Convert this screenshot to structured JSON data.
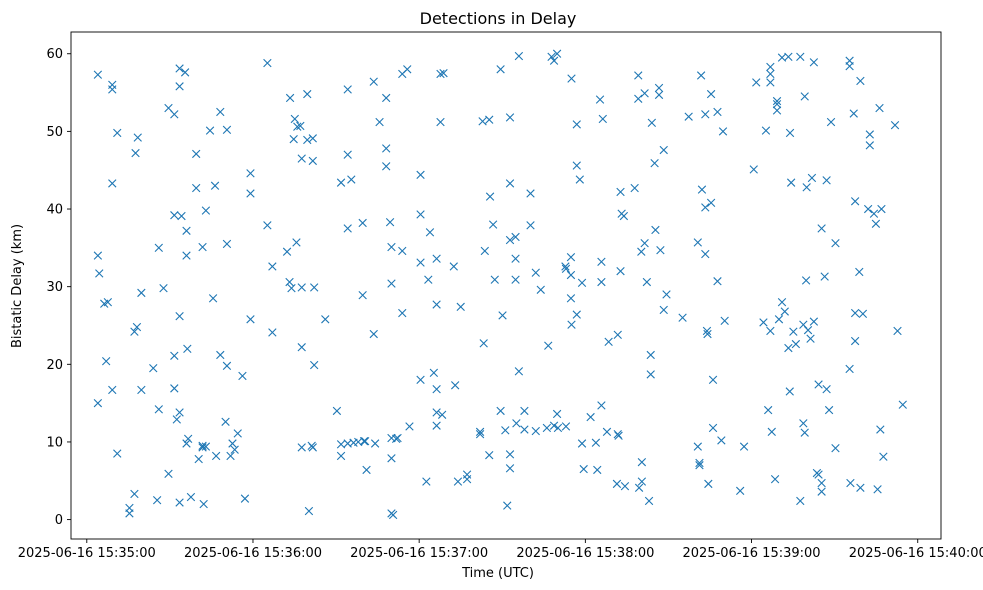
{
  "chart_data": {
    "type": "scatter",
    "title": "Detections in Delay",
    "xlabel": "Time (UTC)",
    "ylabel": "Bistatic Delay (km)",
    "marker": "x",
    "color": "#1f77b4",
    "grid": false,
    "x_unit": "seconds after 2025-06-16 15:35:00",
    "xlim": [
      -5.7,
      308.4
    ],
    "ylim": [
      -2.5,
      62.8
    ],
    "x_ticks": [
      0,
      60,
      120,
      180,
      240,
      300
    ],
    "x_tick_labels": [
      "2025-06-16 15:35:00",
      "2025-06-16 15:36:00",
      "2025-06-16 15:37:00",
      "2025-06-16 15:38:00",
      "2025-06-16 15:39:00",
      "2025-06-16 15:40:00"
    ],
    "y_ticks": [
      0,
      10,
      20,
      30,
      40,
      50,
      60
    ],
    "y_tick_labels": [
      "0",
      "10",
      "20",
      "30",
      "40",
      "50",
      "60"
    ],
    "points": [
      [
        4,
        57.3
      ],
      [
        4,
        34
      ],
      [
        4,
        15
      ],
      [
        4.5,
        31.7
      ],
      [
        6.3,
        27.8
      ],
      [
        7,
        20.4
      ],
      [
        7.6,
        28
      ],
      [
        9.2,
        55.4
      ],
      [
        9.2,
        56
      ],
      [
        9.2,
        43.3
      ],
      [
        9.2,
        16.7
      ],
      [
        11,
        49.8
      ],
      [
        11,
        8.5
      ],
      [
        15.4,
        0.8
      ],
      [
        15.4,
        1.5
      ],
      [
        17.2,
        24.2
      ],
      [
        17.2,
        3.3
      ],
      [
        17.6,
        47.2
      ],
      [
        18.1,
        24.8
      ],
      [
        18.4,
        49.2
      ],
      [
        19.7,
        16.7
      ],
      [
        19.7,
        29.2
      ],
      [
        24,
        19.5
      ],
      [
        25.4,
        2.5
      ],
      [
        26,
        35
      ],
      [
        26,
        14.2
      ],
      [
        27.7,
        29.8
      ],
      [
        29.5,
        5.9
      ],
      [
        29.5,
        53
      ],
      [
        31.6,
        52.2
      ],
      [
        31.6,
        39.2
      ],
      [
        31.6,
        21.1
      ],
      [
        31.6,
        16.9
      ],
      [
        32.5,
        12.9
      ],
      [
        33.5,
        58.1
      ],
      [
        33.5,
        55.8
      ],
      [
        33.5,
        26.2
      ],
      [
        33.5,
        13.8
      ],
      [
        33.5,
        2.2
      ],
      [
        34.2,
        39.1
      ],
      [
        35.5,
        57.6
      ],
      [
        36,
        37.2
      ],
      [
        36,
        34
      ],
      [
        36,
        9.8
      ],
      [
        36.3,
        22
      ],
      [
        36.6,
        10.4
      ],
      [
        37.6,
        2.9
      ],
      [
        39.5,
        47.1
      ],
      [
        39.5,
        42.7
      ],
      [
        40.4,
        7.8
      ],
      [
        41.8,
        35.1
      ],
      [
        41.8,
        9.5
      ],
      [
        41.8,
        9.3
      ],
      [
        42.2,
        2
      ],
      [
        43,
        9.4
      ],
      [
        43,
        39.8
      ],
      [
        44.5,
        50.1
      ],
      [
        45.6,
        28.5
      ],
      [
        46.3,
        43
      ],
      [
        46.7,
        8.2
      ],
      [
        48.2,
        52.5
      ],
      [
        48.2,
        21.2
      ],
      [
        50.1,
        12.6
      ],
      [
        50.6,
        50.2
      ],
      [
        50.6,
        35.5
      ],
      [
        50.6,
        19.8
      ],
      [
        51.9,
        8.2
      ],
      [
        52.6,
        9.8
      ],
      [
        53.4,
        9
      ],
      [
        54.5,
        11.1
      ],
      [
        56.2,
        18.5
      ],
      [
        57.1,
        2.7
      ],
      [
        59.1,
        44.6
      ],
      [
        59.1,
        42
      ],
      [
        59.1,
        25.8
      ],
      [
        65.2,
        58.8
      ],
      [
        65.2,
        37.9
      ],
      [
        67,
        32.6
      ],
      [
        67,
        24.1
      ],
      [
        72.3,
        34.5
      ],
      [
        73.2,
        30.6
      ],
      [
        73.4,
        54.3
      ],
      [
        73.9,
        29.8
      ],
      [
        74.7,
        49
      ],
      [
        75.1,
        51.6
      ],
      [
        75.7,
        35.7
      ],
      [
        76,
        50.6
      ],
      [
        77.1,
        50.7
      ],
      [
        77.6,
        46.5
      ],
      [
        77.6,
        22.2
      ],
      [
        77.6,
        29.9
      ],
      [
        77.6,
        9.3
      ],
      [
        79.6,
        54.8
      ],
      [
        79.6,
        48.9
      ],
      [
        80.2,
        1.1
      ],
      [
        81.2,
        9.5
      ],
      [
        81.6,
        9.3
      ],
      [
        81.6,
        46.2
      ],
      [
        81.6,
        49.1
      ],
      [
        82.1,
        29.9
      ],
      [
        82.1,
        19.9
      ],
      [
        86.1,
        25.8
      ],
      [
        90.3,
        14
      ],
      [
        91.8,
        43.4
      ],
      [
        91.8,
        9.7
      ],
      [
        91.8,
        8.2
      ],
      [
        94.2,
        55.4
      ],
      [
        94.2,
        47
      ],
      [
        94.2,
        37.5
      ],
      [
        94.2,
        9.8
      ],
      [
        95.5,
        43.8
      ],
      [
        96.3,
        9.9
      ],
      [
        98,
        10
      ],
      [
        99.6,
        38.2
      ],
      [
        99.6,
        28.9
      ],
      [
        100.1,
        10.1
      ],
      [
        100.5,
        10.1
      ],
      [
        101,
        6.4
      ],
      [
        103.6,
        56.4
      ],
      [
        103.6,
        23.9
      ],
      [
        104.1,
        9.8
      ],
      [
        105.7,
        51.2
      ],
      [
        108.1,
        54.3
      ],
      [
        108.1,
        47.8
      ],
      [
        108.1,
        45.5
      ],
      [
        109.5,
        38.3
      ],
      [
        110,
        10.5
      ],
      [
        110,
        7.9
      ],
      [
        110,
        35.1
      ],
      [
        110,
        30.4
      ],
      [
        110,
        0.8
      ],
      [
        110.6,
        0.6
      ],
      [
        111.7,
        10.4
      ],
      [
        112.2,
        10.5
      ],
      [
        113.9,
        57.4
      ],
      [
        113.9,
        34.6
      ],
      [
        113.9,
        26.6
      ],
      [
        115.7,
        58
      ],
      [
        116.5,
        12
      ],
      [
        120.5,
        44.4
      ],
      [
        120.5,
        33.1
      ],
      [
        120.5,
        18
      ],
      [
        120.5,
        39.3
      ],
      [
        122.6,
        4.9
      ],
      [
        123.3,
        30.9
      ],
      [
        123.9,
        37
      ],
      [
        125.3,
        18.9
      ],
      [
        126.3,
        27.7
      ],
      [
        126.3,
        33.6
      ],
      [
        126.3,
        13.8
      ],
      [
        126.3,
        12.1
      ],
      [
        126.3,
        16.8
      ],
      [
        127.7,
        57.4
      ],
      [
        127.7,
        51.2
      ],
      [
        128.3,
        13.5
      ],
      [
        128.8,
        57.5
      ],
      [
        132.5,
        32.6
      ],
      [
        133,
        17.3
      ],
      [
        134,
        4.9
      ],
      [
        135,
        27.4
      ],
      [
        137.3,
        5.8
      ],
      [
        137.3,
        5.2
      ],
      [
        142,
        11.3
      ],
      [
        142,
        11
      ],
      [
        142.9,
        51.3
      ],
      [
        143.3,
        22.7
      ],
      [
        143.7,
        34.6
      ],
      [
        145.3,
        51.5
      ],
      [
        145.3,
        8.3
      ],
      [
        145.6,
        41.6
      ],
      [
        146.7,
        38
      ],
      [
        147.3,
        30.9
      ],
      [
        149.4,
        58
      ],
      [
        149.4,
        14
      ],
      [
        150.1,
        26.3
      ],
      [
        151.1,
        11.5
      ],
      [
        151.8,
        1.8
      ],
      [
        152.8,
        36
      ],
      [
        152.8,
        43.3
      ],
      [
        152.8,
        51.8
      ],
      [
        152.8,
        6.6
      ],
      [
        152.8,
        8.4
      ],
      [
        154.8,
        36.4
      ],
      [
        154.8,
        33.6
      ],
      [
        154.8,
        30.9
      ],
      [
        155.1,
        12.4
      ],
      [
        156,
        59.7
      ],
      [
        156,
        19.1
      ],
      [
        158,
        14
      ],
      [
        158,
        11.6
      ],
      [
        160.2,
        37.9
      ],
      [
        160.2,
        42
      ],
      [
        162.1,
        31.8
      ],
      [
        162.1,
        11.4
      ],
      [
        163.9,
        29.6
      ],
      [
        166.1,
        11.8
      ],
      [
        166.6,
        22.4
      ],
      [
        167.8,
        59.6
      ],
      [
        168.7,
        59.1
      ],
      [
        168.7,
        12.1
      ],
      [
        169.8,
        60
      ],
      [
        169.8,
        13.6
      ],
      [
        170.1,
        11.8
      ],
      [
        172.8,
        32.6
      ],
      [
        173,
        32.3
      ],
      [
        173,
        12
      ],
      [
        174.8,
        33.8
      ],
      [
        174.8,
        31.5
      ],
      [
        174.8,
        28.5
      ],
      [
        175,
        56.8
      ],
      [
        175,
        25.1
      ],
      [
        176.9,
        50.9
      ],
      [
        176.9,
        45.6
      ],
      [
        176.9,
        26.4
      ],
      [
        178,
        43.8
      ],
      [
        178.8,
        30.5
      ],
      [
        178.8,
        9.8
      ],
      [
        179.4,
        6.5
      ],
      [
        181.9,
        13.2
      ],
      [
        183.8,
        9.9
      ],
      [
        184.3,
        6.4
      ],
      [
        185.3,
        54.1
      ],
      [
        185.8,
        33.2
      ],
      [
        185.8,
        30.6
      ],
      [
        185.8,
        14.7
      ],
      [
        186.3,
        51.6
      ],
      [
        187.8,
        11.3
      ],
      [
        188.4,
        22.9
      ],
      [
        191.4,
        4.6
      ],
      [
        191.7,
        11
      ],
      [
        191.7,
        23.8
      ],
      [
        192,
        10.8
      ],
      [
        192.7,
        32
      ],
      [
        192.7,
        42.2
      ],
      [
        193.1,
        39.4
      ],
      [
        193.9,
        39.1
      ],
      [
        194.3,
        4.3
      ],
      [
        197.8,
        42.7
      ],
      [
        199.1,
        54.2
      ],
      [
        199.1,
        57.2
      ],
      [
        199.4,
        4.1
      ],
      [
        200.2,
        34.5
      ],
      [
        200.4,
        4.9
      ],
      [
        200.4,
        7.4
      ],
      [
        201.4,
        54.9
      ],
      [
        201.4,
        35.6
      ],
      [
        202.2,
        30.6
      ],
      [
        203,
        2.4
      ],
      [
        203.6,
        21.2
      ],
      [
        203.6,
        18.7
      ],
      [
        204,
        51.1
      ],
      [
        205,
        45.9
      ],
      [
        205.3,
        37.3
      ],
      [
        206.6,
        55.6
      ],
      [
        206.6,
        54.7
      ],
      [
        207.1,
        34.7
      ],
      [
        208.3,
        47.6
      ],
      [
        208.3,
        27
      ],
      [
        209.3,
        29
      ],
      [
        215.1,
        26
      ],
      [
        217.3,
        51.9
      ],
      [
        220.6,
        35.7
      ],
      [
        220.6,
        9.4
      ],
      [
        221.2,
        7.3
      ],
      [
        221.2,
        7
      ],
      [
        221.8,
        57.2
      ],
      [
        222.1,
        42.5
      ],
      [
        223.3,
        52.2
      ],
      [
        223.3,
        40.2
      ],
      [
        223.3,
        34.2
      ],
      [
        223.9,
        24.3
      ],
      [
        224.1,
        23.9
      ],
      [
        224.4,
        4.6
      ],
      [
        225.4,
        54.8
      ],
      [
        225.4,
        40.8
      ],
      [
        226.1,
        18
      ],
      [
        226.1,
        11.8
      ],
      [
        227.7,
        52.5
      ],
      [
        227.7,
        30.7
      ],
      [
        229.1,
        10.2
      ],
      [
        229.7,
        50
      ],
      [
        230.3,
        25.6
      ],
      [
        235.9,
        3.7
      ],
      [
        237.3,
        9.4
      ],
      [
        240.8,
        45.1
      ],
      [
        241.7,
        56.3
      ],
      [
        244.3,
        25.4
      ],
      [
        245.2,
        50.1
      ],
      [
        246,
        14.1
      ],
      [
        246.8,
        56.3
      ],
      [
        246.8,
        57.4
      ],
      [
        246.8,
        58.3
      ],
      [
        246.8,
        24.3
      ],
      [
        247.3,
        11.3
      ],
      [
        248.5,
        5.2
      ],
      [
        249.2,
        53.5
      ],
      [
        249.2,
        52.7
      ],
      [
        249.2,
        53.9
      ],
      [
        249.9,
        25.8
      ],
      [
        251,
        28
      ],
      [
        251,
        59.5
      ],
      [
        252,
        26.8
      ],
      [
        253.3,
        22.1
      ],
      [
        253.3,
        59.6
      ],
      [
        253.8,
        16.5
      ],
      [
        253.9,
        49.8
      ],
      [
        254.3,
        43.4
      ],
      [
        255.1,
        24.2
      ],
      [
        256,
        22.6
      ],
      [
        257.6,
        59.6
      ],
      [
        257.6,
        2.4
      ],
      [
        258.7,
        25.1
      ],
      [
        258.7,
        12.4
      ],
      [
        259.2,
        54.5
      ],
      [
        259.2,
        11.2
      ],
      [
        259.7,
        30.8
      ],
      [
        259.9,
        42.8
      ],
      [
        260.4,
        24.4
      ],
      [
        261.3,
        23.3
      ],
      [
        261.8,
        44
      ],
      [
        262.5,
        25.5
      ],
      [
        262.5,
        58.9
      ],
      [
        263.6,
        6
      ],
      [
        264.2,
        17.4
      ],
      [
        264.2,
        5.8
      ],
      [
        265.3,
        37.5
      ],
      [
        265.3,
        4.7
      ],
      [
        265.3,
        3.6
      ],
      [
        266.4,
        31.3
      ],
      [
        267.1,
        16.8
      ],
      [
        267.1,
        43.7
      ],
      [
        268,
        14.1
      ],
      [
        268.7,
        51.2
      ],
      [
        270.3,
        35.6
      ],
      [
        270.3,
        9.2
      ],
      [
        275.4,
        59.1
      ],
      [
        275.4,
        58.4
      ],
      [
        275.4,
        19.4
      ],
      [
        275.7,
        4.7
      ],
      [
        276.9,
        52.3
      ],
      [
        277.4,
        41
      ],
      [
        277.4,
        26.6
      ],
      [
        277.4,
        23
      ],
      [
        278.9,
        31.9
      ],
      [
        279.3,
        4.1
      ],
      [
        279.3,
        56.5
      ],
      [
        280.2,
        26.5
      ],
      [
        282.1,
        40
      ],
      [
        282.7,
        49.6
      ],
      [
        282.7,
        48.2
      ],
      [
        284.2,
        39.4
      ],
      [
        284.9,
        38.1
      ],
      [
        285.5,
        3.9
      ],
      [
        286.2,
        53
      ],
      [
        287.6,
        8.1
      ],
      [
        286.5,
        11.6
      ],
      [
        286.9,
        40
      ],
      [
        291.8,
        50.8
      ],
      [
        292.7,
        24.3
      ],
      [
        294.6,
        14.8
      ]
    ]
  }
}
